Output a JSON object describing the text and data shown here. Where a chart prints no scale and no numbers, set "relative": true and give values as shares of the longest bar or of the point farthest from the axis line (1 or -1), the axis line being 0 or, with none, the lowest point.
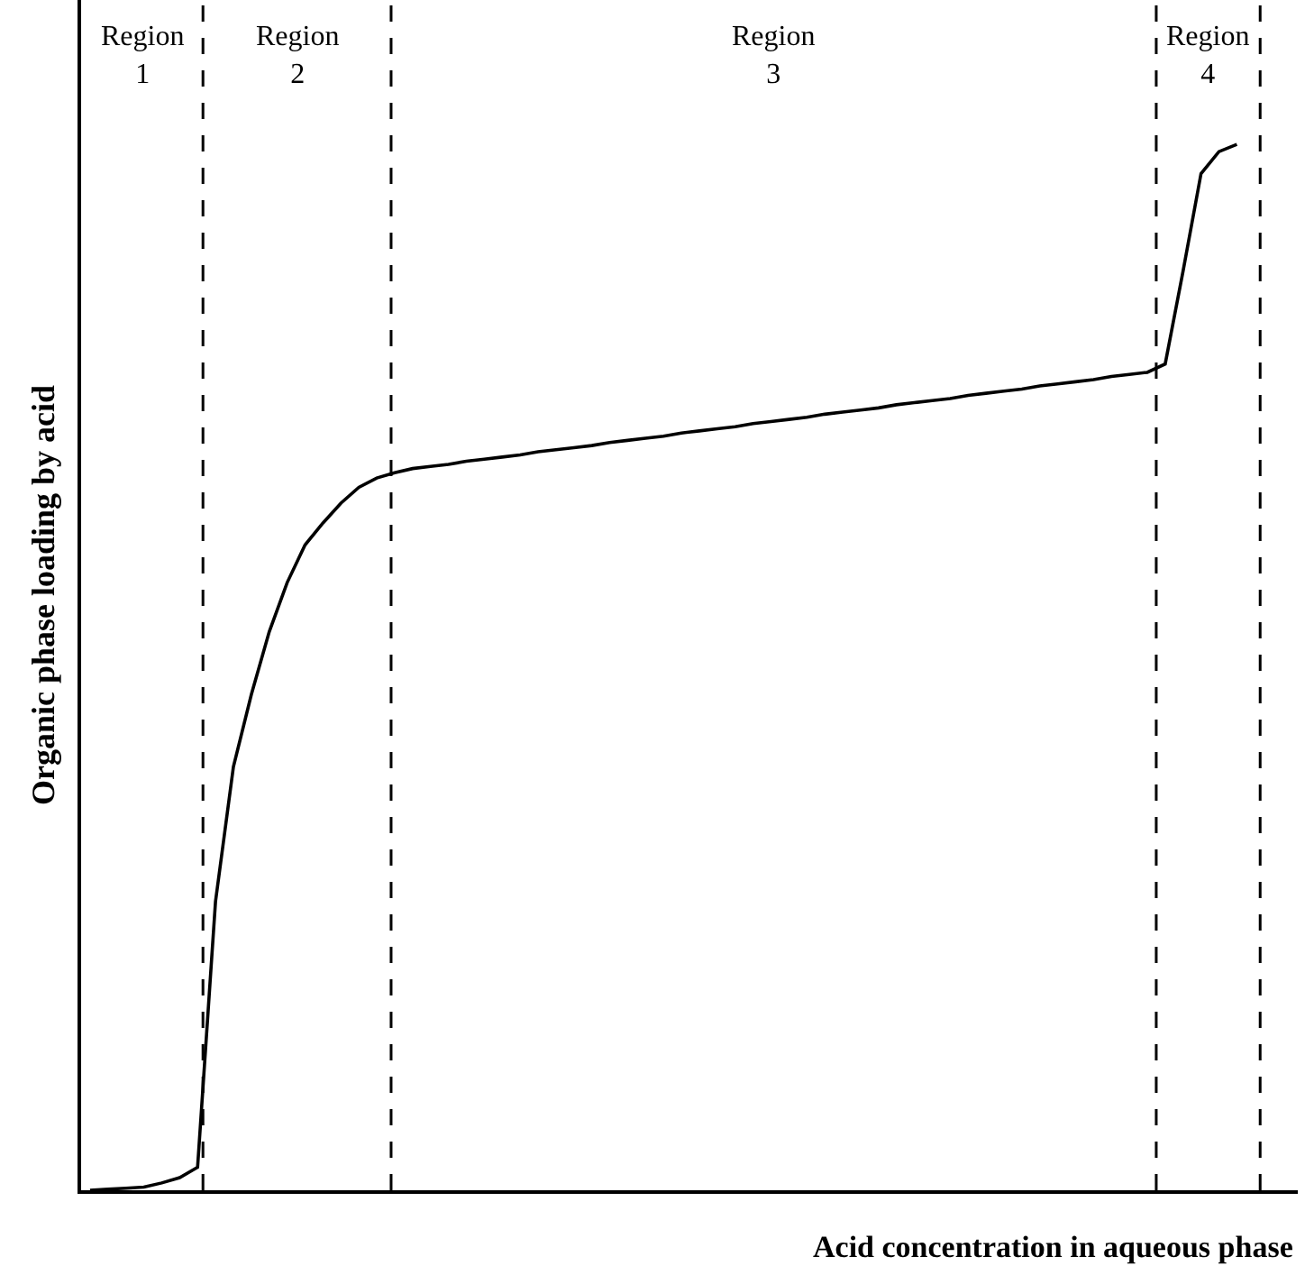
{
  "chart_data": {
    "type": "line",
    "relative": true,
    "xlabel": "Acid concentration in aqueous phase",
    "ylabel": "Organic phase loading by acid",
    "grid": false,
    "marker": "none",
    "line_style": "solid",
    "categories": [
      null,
      null,
      null,
      null,
      null,
      null,
      null,
      null,
      null,
      null,
      null,
      null,
      null,
      null,
      null,
      null,
      null,
      null,
      null,
      null,
      null,
      null,
      null,
      null,
      null,
      null,
      null,
      null,
      null,
      null,
      null,
      null,
      null,
      null,
      null,
      null,
      null,
      null,
      null,
      null,
      null,
      null,
      null,
      null,
      null,
      null,
      null,
      null,
      null,
      null,
      null,
      null,
      null,
      null,
      null,
      null,
      null,
      null,
      null,
      null,
      null,
      null,
      null,
      null,
      null
    ],
    "series": [
      {
        "color": "#000000",
        "values": [
          0,
          0.001,
          0.002,
          0.003,
          0.007,
          0.012,
          0.022,
          0.276,
          0.405,
          0.474,
          0.534,
          0.581,
          0.617,
          0.638,
          0.657,
          0.672,
          0.681,
          0.686,
          0.69,
          0.692,
          0.694,
          0.697,
          0.699,
          0.701,
          0.703,
          0.706,
          0.708,
          0.71,
          0.712,
          0.715,
          0.717,
          0.719,
          0.721,
          0.724,
          0.726,
          0.728,
          0.73,
          0.733,
          0.735,
          0.737,
          0.739,
          0.742,
          0.744,
          0.746,
          0.748,
          0.751,
          0.753,
          0.755,
          0.757,
          0.76,
          0.762,
          0.764,
          0.766,
          0.769,
          0.771,
          0.773,
          0.775,
          0.778,
          0.78,
          0.782,
          0.79,
          0.879,
          0.972,
          0.993,
          1
        ]
      }
    ],
    "annotations": [
      "Region\n1",
      "Region\n2",
      "Region\n3",
      "Region\n4"
    ]
  }
}
